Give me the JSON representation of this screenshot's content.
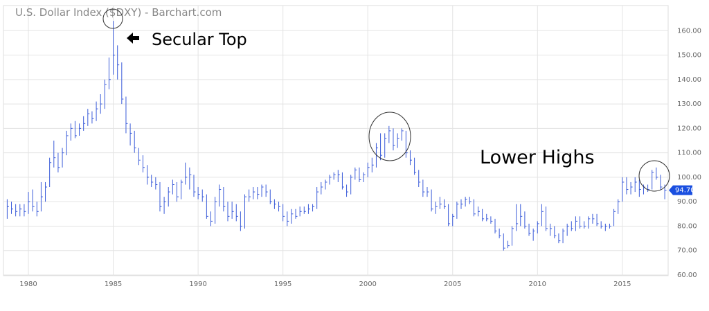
{
  "chart_data": {
    "type": "ohlc",
    "title": "U.S. Dollar Index ($DXY) - Barchart.com",
    "annotations": [
      "Secular Top",
      "Lower Highs"
    ],
    "color": "#3a5bd9",
    "grid": true,
    "xlim": [
      1978.53,
      2017.7
    ],
    "ylim": [
      60,
      170
    ],
    "xticks": [
      1980,
      1985,
      1990,
      1995,
      2000,
      2005,
      2010,
      2015
    ],
    "yticks": [
      {
        "value": 60,
        "label": "60.00"
      },
      {
        "value": 70,
        "label": "70.00"
      },
      {
        "value": 80,
        "label": "80.00"
      },
      {
        "value": 90,
        "label": "90.00"
      },
      {
        "value": 100,
        "label": "100.00"
      },
      {
        "value": 110,
        "label": "110.00"
      },
      {
        "value": 120,
        "label": "120.00"
      },
      {
        "value": 130,
        "label": "130.00"
      },
      {
        "value": 140,
        "label": "140.00"
      },
      {
        "value": 150,
        "label": "150.00"
      },
      {
        "value": 160,
        "label": "160.00"
      }
    ],
    "last_price": {
      "value": 94.7,
      "label": "94.70"
    },
    "x": [
      1978.75,
      1979,
      1979.25,
      1979.5,
      1979.75,
      1980,
      1980.25,
      1980.5,
      1980.75,
      1981,
      1981.25,
      1981.5,
      1981.75,
      1982,
      1982.25,
      1982.5,
      1982.75,
      1983,
      1983.25,
      1983.5,
      1983.75,
      1984,
      1984.25,
      1984.5,
      1984.75,
      1985,
      1985.25,
      1985.5,
      1985.75,
      1986,
      1986.25,
      1986.5,
      1986.75,
      1987,
      1987.25,
      1987.5,
      1987.75,
      1988,
      1988.25,
      1988.5,
      1988.75,
      1989,
      1989.25,
      1989.5,
      1989.75,
      1990,
      1990.25,
      1990.5,
      1990.75,
      1991,
      1991.25,
      1991.5,
      1991.75,
      1992,
      1992.25,
      1992.5,
      1992.75,
      1993,
      1993.25,
      1993.5,
      1993.75,
      1994,
      1994.25,
      1994.5,
      1994.75,
      1995,
      1995.25,
      1995.5,
      1995.75,
      1996,
      1996.25,
      1996.5,
      1996.75,
      1997,
      1997.25,
      1997.5,
      1997.75,
      1998,
      1998.25,
      1998.5,
      1998.75,
      1999,
      1999.25,
      1999.5,
      1999.75,
      2000,
      2000.25,
      2000.5,
      2000.75,
      2001,
      2001.25,
      2001.5,
      2001.75,
      2002,
      2002.25,
      2002.5,
      2002.75,
      2003,
      2003.25,
      2003.5,
      2003.75,
      2004,
      2004.25,
      2004.5,
      2004.75,
      2005,
      2005.25,
      2005.5,
      2005.75,
      2006,
      2006.25,
      2006.5,
      2006.75,
      2007,
      2007.25,
      2007.5,
      2007.75,
      2008,
      2008.25,
      2008.5,
      2008.75,
      2009,
      2009.25,
      2009.5,
      2009.75,
      2010,
      2010.25,
      2010.5,
      2010.75,
      2011,
      2011.25,
      2011.5,
      2011.75,
      2012,
      2012.25,
      2012.5,
      2012.75,
      2013,
      2013.25,
      2013.5,
      2013.75,
      2014,
      2014.25,
      2014.5,
      2014.75,
      2015,
      2015.25,
      2015.5,
      2015.75,
      2016,
      2016.25,
      2016.5,
      2016.75,
      2017,
      2017.25,
      2017.5
    ],
    "high": [
      91,
      90,
      89,
      89,
      89,
      94,
      95,
      90,
      98,
      98,
      108,
      115,
      110,
      112,
      119,
      122,
      123,
      122,
      125,
      128,
      127,
      131,
      134,
      140,
      149,
      164,
      154,
      147,
      133,
      122,
      119,
      112,
      109,
      105,
      101,
      100,
      98,
      92,
      96,
      99,
      98,
      99,
      106,
      104,
      101,
      96,
      95,
      93,
      86,
      92,
      97,
      96,
      90,
      90,
      89,
      86,
      93,
      95,
      96,
      96,
      97,
      97,
      95,
      91,
      90,
      89,
      86,
      87,
      87,
      88,
      88,
      89,
      89,
      96,
      98,
      99,
      101,
      102,
      103,
      102,
      97,
      101,
      104,
      104,
      102,
      106,
      108,
      114,
      118,
      118,
      121,
      120,
      118,
      120,
      119,
      111,
      108,
      103,
      99,
      96,
      95,
      90,
      92,
      91,
      89,
      85,
      90,
      91,
      92,
      92,
      91,
      88,
      87,
      85,
      84,
      83,
      79,
      77,
      74,
      80,
      89,
      89,
      86,
      81,
      79,
      82,
      89,
      88,
      81,
      80,
      77,
      79,
      81,
      82,
      84,
      84,
      82,
      84,
      85,
      85,
      82,
      81,
      81,
      87,
      91,
      100,
      100,
      98,
      100,
      99,
      97,
      97,
      103,
      104,
      101,
      97
    ],
    "low": [
      83,
      85,
      84,
      84,
      84,
      85,
      86,
      84,
      86,
      90,
      96,
      104,
      102,
      104,
      109,
      115,
      116,
      117,
      119,
      121,
      122,
      123,
      126,
      128,
      136,
      142,
      140,
      130,
      118,
      113,
      110,
      105,
      102,
      97,
      96,
      95,
      86,
      85,
      88,
      93,
      90,
      91,
      97,
      95,
      92,
      91,
      90,
      83,
      80,
      81,
      88,
      86,
      82,
      83,
      82,
      78,
      79,
      90,
      91,
      91,
      92,
      92,
      89,
      87,
      86,
      82,
      80,
      81,
      83,
      84,
      85,
      85,
      86,
      87,
      93,
      95,
      97,
      99,
      98,
      95,
      92,
      93,
      99,
      98,
      98,
      100,
      102,
      104,
      107,
      108,
      114,
      111,
      112,
      115,
      108,
      105,
      101,
      96,
      92,
      92,
      86,
      85,
      87,
      87,
      80,
      80,
      83,
      87,
      88,
      89,
      84,
      84,
      82,
      82,
      81,
      77,
      75,
      70,
      71,
      72,
      78,
      80,
      79,
      76,
      74,
      77,
      80,
      78,
      76,
      75,
      73,
      73,
      76,
      78,
      78,
      79,
      79,
      79,
      81,
      80,
      79,
      78,
      79,
      80,
      85,
      90,
      93,
      93,
      94,
      92,
      93,
      94,
      95,
      99,
      95,
      91
    ],
    "close": [
      88,
      87,
      86,
      87,
      86,
      90,
      88,
      86,
      92,
      96,
      106,
      108,
      104,
      110,
      117,
      120,
      117,
      120,
      122,
      126,
      124,
      128,
      130,
      138,
      140,
      150,
      146,
      132,
      122,
      118,
      112,
      107,
      104,
      100,
      98,
      97,
      88,
      90,
      94,
      97,
      92,
      98,
      100,
      101,
      94,
      93,
      92,
      84,
      82,
      90,
      95,
      88,
      84,
      86,
      84,
      80,
      92,
      92,
      94,
      93,
      96,
      94,
      90,
      89,
      88,
      84,
      82,
      85,
      84,
      86,
      86,
      87,
      88,
      94,
      96,
      98,
      100,
      101,
      101,
      96,
      94,
      100,
      103,
      99,
      101,
      104,
      105,
      112,
      109,
      116,
      119,
      113,
      116,
      119,
      110,
      107,
      102,
      98,
      94,
      94,
      87,
      88,
      89,
      88,
      81,
      84,
      89,
      89,
      91,
      90,
      85,
      86,
      83,
      83,
      82,
      78,
      76,
      71,
      72,
      79,
      81,
      84,
      80,
      77,
      78,
      81,
      86,
      79,
      79,
      76,
      74,
      78,
      80,
      79,
      82,
      80,
      80,
      83,
      83,
      81,
      80,
      80,
      80,
      86,
      90,
      98,
      95,
      96,
      98,
      95,
      96,
      95,
      102,
      100,
      96,
      94.7
    ]
  }
}
